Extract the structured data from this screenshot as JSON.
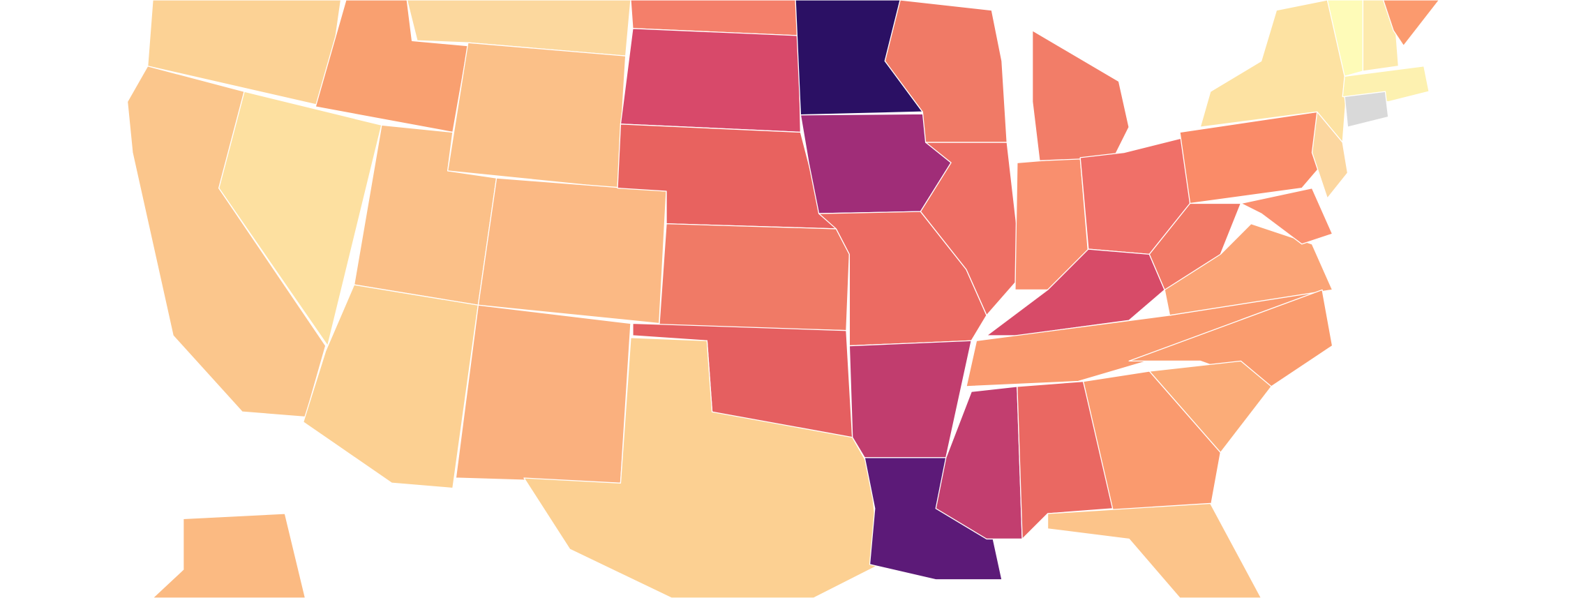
{
  "map": {
    "regions": [
      {
        "color": "#fcd295"
      },
      {
        "color": "#f9a070"
      },
      {
        "color": "#fcd89e"
      },
      {
        "color": "#fbc68c"
      },
      {
        "color": "#fde0a0"
      },
      {
        "color": "#fbc088"
      },
      {
        "color": "#fbc088"
      },
      {
        "color": "#fcd092"
      },
      {
        "color": "#fbb984"
      },
      {
        "color": "#fab07e"
      },
      {
        "color": "#f47f6a"
      },
      {
        "color": "#d8496a"
      },
      {
        "color": "#e8625f"
      },
      {
        "color": "#f07a66"
      },
      {
        "color": "#e55f60"
      },
      {
        "color": "#fcd092"
      },
      {
        "color": "#2b1064"
      },
      {
        "color": "#a02d78"
      },
      {
        "color": "#ec6b62"
      },
      {
        "color": "#c13d6e"
      },
      {
        "color": "#5c1a78"
      },
      {
        "color": "#c23e6f"
      },
      {
        "color": "#ea6862"
      },
      {
        "color": "#f07a66"
      },
      {
        "color": "#ee6f64"
      },
      {
        "color": "#f98f6e"
      },
      {
        "color": "#f27d68"
      },
      {
        "color": "#f07068"
      },
      {
        "color": "#d74b68"
      },
      {
        "color": "#fa9a6e"
      },
      {
        "color": "#f27a66"
      },
      {
        "color": "#fba476"
      },
      {
        "color": "#fa9c6e"
      },
      {
        "color": "#fbac78"
      },
      {
        "color": "#fa9a6e"
      },
      {
        "color": "#fcc48a"
      },
      {
        "color": "#fa8b68"
      },
      {
        "color": "#fde2a2"
      },
      {
        "color": "#fefbb8"
      },
      {
        "color": "#fdeaad"
      },
      {
        "color": "#fb9a6e"
      },
      {
        "color": "#fdf1b0"
      },
      {
        "color": "#d9d9d9"
      },
      {
        "color": "#fcd7a0"
      },
      {
        "color": "#fb9170"
      },
      {
        "color": "#fbba82"
      }
    ]
  }
}
